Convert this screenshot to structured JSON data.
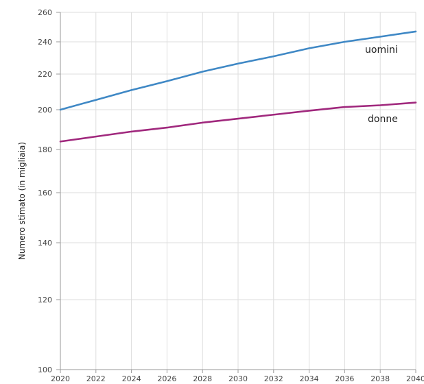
{
  "chart_data": {
    "type": "line",
    "title": "",
    "xlabel": "",
    "ylabel": "Numero stimato (in migliaia)",
    "xlim": [
      2020,
      2040
    ],
    "ylim": [
      100,
      260
    ],
    "x_ticks": [
      2020,
      2022,
      2024,
      2026,
      2028,
      2030,
      2032,
      2034,
      2036,
      2038,
      2040
    ],
    "x_tick_labels": [
      "2020",
      "2022",
      "2024",
      "2026",
      "2028",
      "2030",
      "2032",
      "2034",
      "2036",
      "2038",
      "2040"
    ],
    "y_ticks": [
      100,
      120,
      140,
      160,
      180,
      200,
      220,
      240,
      260
    ],
    "y_tick_labels": [
      "100",
      "120",
      "140",
      "160",
      "180",
      "200",
      "220",
      "240",
      "260"
    ],
    "grid": true,
    "x": [
      2020,
      2022,
      2024,
      2026,
      2028,
      2030,
      2032,
      2034,
      2036,
      2038,
      2040
    ],
    "series": [
      {
        "name": "uomini",
        "color": "#3f88c5",
        "values": [
          200,
          205.5,
          211,
          216,
          221.5,
          226.5,
          231,
          236,
          240,
          243.5,
          247
        ]
      },
      {
        "name": "donne",
        "color": "#a0287d",
        "values": [
          184,
          186.5,
          189,
          191,
          193.5,
          195.5,
          197.5,
          199.5,
          201.5,
          202.5,
          204
        ]
      }
    ]
  }
}
